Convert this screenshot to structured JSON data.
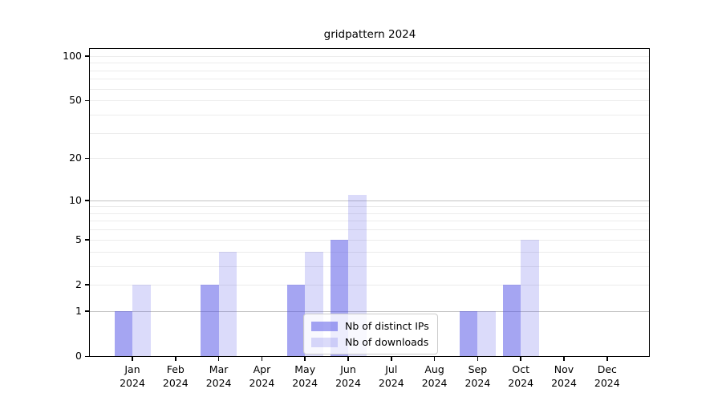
{
  "title": "gridpattern 2024",
  "chart_data": {
    "type": "bar",
    "title": "gridpattern 2024",
    "categories": [
      "Jan",
      "Feb",
      "Mar",
      "Apr",
      "May",
      "Jun",
      "Jul",
      "Aug",
      "Sep",
      "Oct",
      "Nov",
      "Dec"
    ],
    "category_year": "2024",
    "series": [
      {
        "name": "Nb of distinct IPs",
        "color": "rgba(75,75,230,0.5)",
        "values": [
          1,
          0,
          2,
          0,
          2,
          5,
          0,
          0,
          1,
          2,
          0,
          0
        ]
      },
      {
        "name": "Nb of downloads",
        "color": "rgba(75,75,230,0.2)",
        "values": [
          2,
          0,
          4,
          0,
          4,
          11,
          0,
          0,
          1,
          5,
          0,
          0
        ]
      }
    ],
    "ylabel": "",
    "xlabel": "",
    "yscale": "log10(1+v)",
    "ylim": [
      0,
      111.6
    ],
    "yticks": [
      0,
      1,
      2,
      5,
      10,
      20,
      50,
      100
    ],
    "major_gridlines": [
      1,
      10
    ],
    "minor_gridlines": [
      2,
      3,
      4,
      5,
      6,
      7,
      8,
      9,
      20,
      30,
      40,
      50,
      60,
      70,
      80,
      90,
      100
    ],
    "grid": true,
    "legend_position": "lower center"
  },
  "legend": {
    "items": [
      {
        "label": "Nb of distinct IPs"
      },
      {
        "label": "Nb of downloads"
      }
    ]
  }
}
